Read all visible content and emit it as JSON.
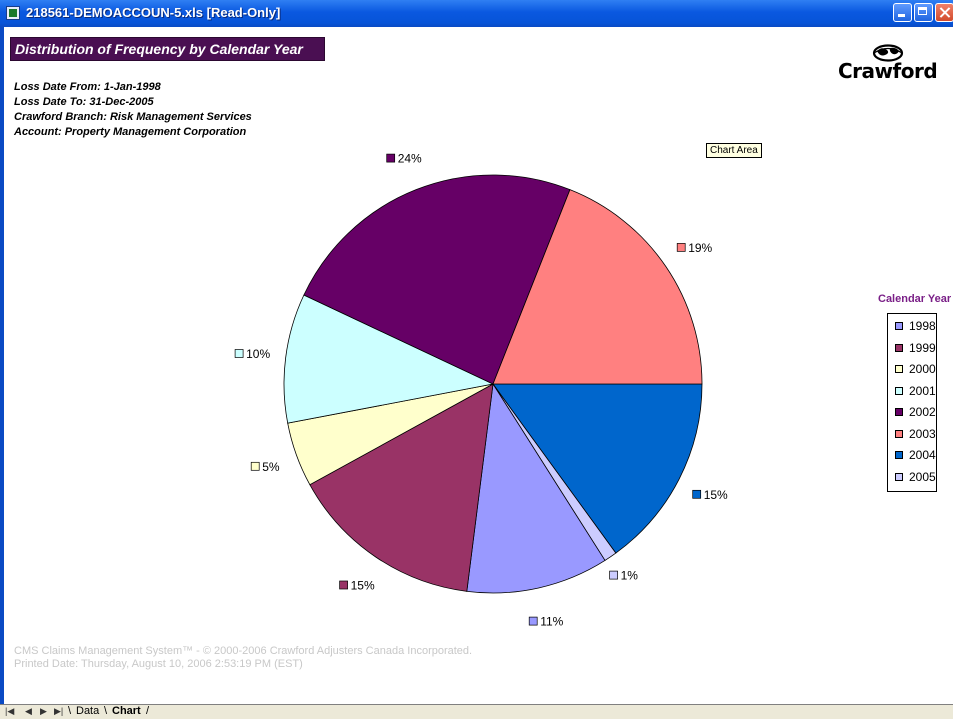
{
  "window": {
    "title": "218561-DEMOACCOUN-5.xls  [Read-Only]"
  },
  "report": {
    "title": "Distribution of Frequency by Calendar Year",
    "info": [
      "Loss Date From: 1-Jan-1998",
      "Loss Date To: 31-Dec-2005",
      "Crawford Branch: Risk Management Services",
      "Account: Property Management Corporation"
    ],
    "logo_text": "Crawford"
  },
  "tooltip": "Chart Area",
  "legend": {
    "title": "Calendar Year"
  },
  "footer": [
    "CMS Claims Management System™ - © 2000-2006 Crawford Adjusters Canada Incorporated.",
    "Printed Date: Thursday, August 10, 2006 2:53:19 PM (EST)"
  ],
  "sheet_tabs": {
    "nav_icons": [
      "first-sheet-icon",
      "prev-sheet-icon",
      "next-sheet-icon",
      "last-sheet-icon"
    ],
    "tabs": [
      "Data",
      "Chart"
    ],
    "active": "Chart"
  },
  "chart_data": {
    "type": "pie",
    "legend_title": "Calendar Year",
    "legend_position": "right",
    "start_year_order": [
      "2004",
      "2005",
      "1998",
      "1999",
      "2000",
      "2001",
      "2002",
      "2003"
    ],
    "slices": [
      {
        "label": "1998",
        "value": 11,
        "display": "11%",
        "color": "#9999ff"
      },
      {
        "label": "1999",
        "value": 15,
        "display": "15%",
        "color": "#993366"
      },
      {
        "label": "2000",
        "value": 5,
        "display": "5%",
        "color": "#ffffcc"
      },
      {
        "label": "2001",
        "value": 10,
        "display": "10%",
        "color": "#ccffff"
      },
      {
        "label": "2002",
        "value": 24,
        "display": "24%",
        "color": "#660066"
      },
      {
        "label": "2003",
        "value": 19,
        "display": "19%",
        "color": "#ff8080"
      },
      {
        "label": "2004",
        "value": 15,
        "display": "15%",
        "color": "#0066cc"
      },
      {
        "label": "2005",
        "value": 1,
        "display": "1%",
        "color": "#ccccff"
      }
    ]
  }
}
